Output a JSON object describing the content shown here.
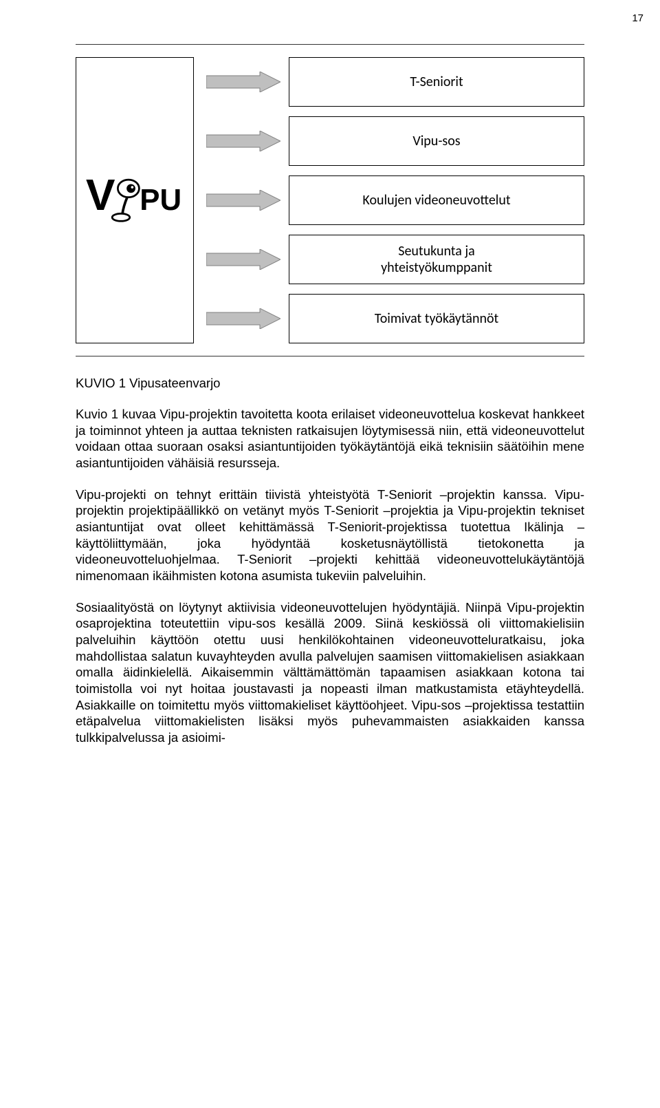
{
  "page_number": "17",
  "diagram": {
    "logo_text_left": "V",
    "logo_text_right": "PU",
    "items": [
      {
        "label": "T-Seniorit"
      },
      {
        "label": "Vipu-sos"
      },
      {
        "label": "Koulujen videoneuvottelut"
      },
      {
        "label": "Seutukunta ja\nyhteistyökumppanit"
      },
      {
        "label": "Toimivat työkäytännöt"
      }
    ],
    "arrow_fill": "#bfbfbf",
    "arrow_stroke": "#7f7f7f",
    "box_border": "#000000",
    "box_font": "Calibri",
    "box_fontsize": 20,
    "bg": "#ffffff"
  },
  "caption": "KUVIO 1 Vipusateenvarjo",
  "paragraphs": [
    "Kuvio 1 kuvaa Vipu-projektin tavoitetta koota erilaiset videoneuvottelua koskevat hankkeet ja toiminnot yhteen ja auttaa teknisten ratkaisujen löytymisessä niin, että videoneuvottelut voidaan ottaa suoraan osaksi asiantuntijoiden työkäytäntöjä eikä teknisiin säätöihin mene asiantuntijoiden vähäisiä resursseja.",
    "Vipu-projekti on tehnyt erittäin tiivistä yhteistyötä T-Seniorit –projektin kanssa. Vipu-projektin projektipäällikkö on vetänyt myös T-Seniorit –projektia ja Vipu-projektin tekniset asiantuntijat ovat olleet kehittämässä T-Seniorit-projektissa tuotettua Ikälinja –käyttöliittymään, joka hyödyntää kosketusnäytöllistä tietokonetta ja videoneuvotteluohjelmaa. T-Seniorit –projekti kehittää videoneuvottelukäytäntöjä nimenomaan ikäihmisten kotona asumista tukeviin palveluihin.",
    "Sosiaalityöstä on löytynyt aktiivisia videoneuvottelujen hyödyntäjiä. Niinpä Vipu-projektin osaprojektina toteutettiin vipu-sos kesällä 2009. Siinä keskiössä oli viittomakielisiin palveluihin käyttöön otettu uusi henkilökohtainen videoneuvotteluratkaisu, joka mahdollistaa salatun kuvayhteyden avulla palvelujen saamisen viittomakielisen asiakkaan omalla äidinkielellä. Aikaisemmin välttämättömän tapaamisen asiakkaan kotona tai toimistolla voi nyt hoitaa joustavasti ja nopeasti ilman matkustamista etäyhteydellä. Asiakkaille on toimitettu myös viittomakieliset käyttöohjeet. Vipu-sos –projektissa testattiin etäpalvelua viittomakielisten lisäksi myös puhevammaisten asiakkaiden kanssa tulkkipalvelussa ja asioimi-"
  ],
  "typography": {
    "body_fontsize": 18.5,
    "body_lineheight": 1.28,
    "body_color": "#000000",
    "body_align": "justify"
  }
}
